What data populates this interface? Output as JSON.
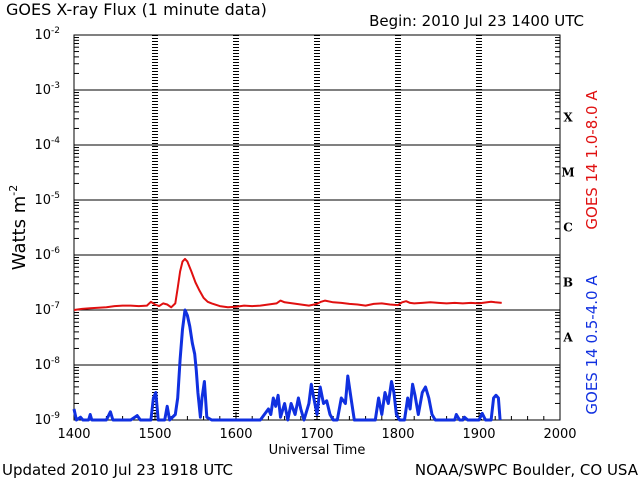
{
  "header": {
    "title": "GOES X-ray Flux (1 minute data)",
    "begin": "Begin: 2010 Jul 23 1400 UTC"
  },
  "footer": {
    "updated": "Updated 2010 Jul 23 1918 UTC",
    "credit": "NOAA/SWPC Boulder, CO USA"
  },
  "chart_data": {
    "type": "line",
    "title": "GOES X-ray Flux (1 minute data)",
    "xlabel": "Universal Time",
    "ylabel": "Watts m",
    "ylabel_superscript": "-2",
    "y_scale": "log",
    "xlim": [
      1400,
      2000
    ],
    "ylim": [
      1e-09,
      0.01
    ],
    "x_ticks": [
      {
        "value": 1400,
        "label": "1400"
      },
      {
        "value": 1500,
        "label": "1500"
      },
      {
        "value": 1600,
        "label": "1600"
      },
      {
        "value": 1700,
        "label": "1700"
      },
      {
        "value": 1800,
        "label": "1800"
      },
      {
        "value": 1900,
        "label": "1900"
      },
      {
        "value": 2000,
        "label": "2000"
      }
    ],
    "y_ticks": [
      {
        "exp": -9,
        "label": "10",
        "sup": "-9"
      },
      {
        "exp": -8,
        "label": "10",
        "sup": "-8"
      },
      {
        "exp": -7,
        "label": "10",
        "sup": "-7"
      },
      {
        "exp": -6,
        "label": "10",
        "sup": "-6"
      },
      {
        "exp": -5,
        "label": "10",
        "sup": "-5"
      },
      {
        "exp": -4,
        "label": "10",
        "sup": "-4"
      },
      {
        "exp": -3,
        "label": "10",
        "sup": "-3"
      },
      {
        "exp": -2,
        "label": "10",
        "sup": "-2"
      }
    ],
    "flare_classes": [
      {
        "label": "A",
        "exp": -7.5
      },
      {
        "label": "B",
        "exp": -6.5
      },
      {
        "label": "C",
        "exp": -5.5
      },
      {
        "label": "M",
        "exp": -4.5
      },
      {
        "label": "X",
        "exp": -3.5
      }
    ],
    "grid": true,
    "series": [
      {
        "name": "GOES 14 1.0-8.0 A",
        "color": "#e01010",
        "points": [
          [
            1400,
            -7.0
          ],
          [
            1410,
            -6.98
          ],
          [
            1420,
            -6.97
          ],
          [
            1430,
            -6.96
          ],
          [
            1440,
            -6.95
          ],
          [
            1450,
            -6.93
          ],
          [
            1460,
            -6.92
          ],
          [
            1470,
            -6.92
          ],
          [
            1480,
            -6.93
          ],
          [
            1490,
            -6.92
          ],
          [
            1495,
            -6.85
          ],
          [
            1500,
            -6.9
          ],
          [
            1505,
            -6.93
          ],
          [
            1510,
            -6.88
          ],
          [
            1515,
            -6.9
          ],
          [
            1520,
            -6.95
          ],
          [
            1525,
            -6.88
          ],
          [
            1528,
            -6.6
          ],
          [
            1531,
            -6.3
          ],
          [
            1534,
            -6.12
          ],
          [
            1537,
            -6.07
          ],
          [
            1540,
            -6.12
          ],
          [
            1545,
            -6.3
          ],
          [
            1550,
            -6.5
          ],
          [
            1555,
            -6.65
          ],
          [
            1560,
            -6.78
          ],
          [
            1565,
            -6.85
          ],
          [
            1570,
            -6.88
          ],
          [
            1580,
            -6.93
          ],
          [
            1590,
            -6.95
          ],
          [
            1600,
            -6.94
          ],
          [
            1610,
            -6.92
          ],
          [
            1620,
            -6.93
          ],
          [
            1630,
            -6.92
          ],
          [
            1640,
            -6.9
          ],
          [
            1650,
            -6.88
          ],
          [
            1655,
            -6.83
          ],
          [
            1660,
            -6.86
          ],
          [
            1670,
            -6.88
          ],
          [
            1680,
            -6.9
          ],
          [
            1690,
            -6.92
          ],
          [
            1700,
            -6.89
          ],
          [
            1705,
            -6.85
          ],
          [
            1710,
            -6.83
          ],
          [
            1720,
            -6.86
          ],
          [
            1730,
            -6.87
          ],
          [
            1740,
            -6.89
          ],
          [
            1750,
            -6.9
          ],
          [
            1760,
            -6.92
          ],
          [
            1770,
            -6.89
          ],
          [
            1780,
            -6.88
          ],
          [
            1790,
            -6.9
          ],
          [
            1800,
            -6.91
          ],
          [
            1805,
            -6.86
          ],
          [
            1810,
            -6.84
          ],
          [
            1815,
            -6.87
          ],
          [
            1820,
            -6.88
          ],
          [
            1830,
            -6.87
          ],
          [
            1840,
            -6.86
          ],
          [
            1850,
            -6.87
          ],
          [
            1860,
            -6.88
          ],
          [
            1870,
            -6.87
          ],
          [
            1880,
            -6.88
          ],
          [
            1890,
            -6.87
          ],
          [
            1900,
            -6.88
          ],
          [
            1910,
            -6.86
          ],
          [
            1915,
            -6.85
          ],
          [
            1920,
            -6.86
          ],
          [
            1928,
            -6.87
          ]
        ]
      },
      {
        "name": "GOES 14 0.5-4.0 A",
        "color": "#1030e0",
        "points": [
          [
            1400,
            -8.8
          ],
          [
            1403,
            -9.0
          ],
          [
            1408,
            -8.95
          ],
          [
            1411,
            -9.0
          ],
          [
            1418,
            -9.0
          ],
          [
            1420,
            -8.9
          ],
          [
            1422,
            -9.0
          ],
          [
            1440,
            -9.0
          ],
          [
            1445,
            -8.85
          ],
          [
            1448,
            -9.0
          ],
          [
            1460,
            -9.0
          ],
          [
            1470,
            -9.0
          ],
          [
            1478,
            -8.92
          ],
          [
            1482,
            -9.0
          ],
          [
            1495,
            -9.0
          ],
          [
            1498,
            -8.6
          ],
          [
            1501,
            -8.5
          ],
          [
            1504,
            -9.0
          ],
          [
            1512,
            -9.0
          ],
          [
            1515,
            -8.75
          ],
          [
            1518,
            -9.0
          ],
          [
            1525,
            -8.9
          ],
          [
            1528,
            -8.6
          ],
          [
            1531,
            -7.9
          ],
          [
            1534,
            -7.35
          ],
          [
            1537,
            -7.0
          ],
          [
            1540,
            -7.1
          ],
          [
            1543,
            -7.3
          ],
          [
            1546,
            -7.6
          ],
          [
            1549,
            -7.8
          ],
          [
            1551,
            -8.1
          ],
          [
            1553,
            -8.5
          ],
          [
            1556,
            -8.95
          ],
          [
            1558,
            -8.6
          ],
          [
            1561,
            -8.3
          ],
          [
            1564,
            -8.95
          ],
          [
            1570,
            -9.0
          ],
          [
            1600,
            -9.0
          ],
          [
            1630,
            -9.0
          ],
          [
            1640,
            -8.8
          ],
          [
            1643,
            -8.9
          ],
          [
            1646,
            -8.6
          ],
          [
            1649,
            -8.75
          ],
          [
            1652,
            -8.55
          ],
          [
            1655,
            -8.95
          ],
          [
            1660,
            -8.7
          ],
          [
            1664,
            -9.0
          ],
          [
            1668,
            -8.7
          ],
          [
            1673,
            -8.9
          ],
          [
            1677,
            -8.6
          ],
          [
            1680,
            -8.8
          ],
          [
            1684,
            -9.0
          ],
          [
            1690,
            -8.7
          ],
          [
            1693,
            -8.35
          ],
          [
            1696,
            -8.6
          ],
          [
            1700,
            -8.9
          ],
          [
            1704,
            -8.4
          ],
          [
            1708,
            -8.7
          ],
          [
            1712,
            -8.65
          ],
          [
            1716,
            -8.9
          ],
          [
            1720,
            -9.0
          ],
          [
            1725,
            -9.0
          ],
          [
            1730,
            -8.6
          ],
          [
            1735,
            -8.7
          ],
          [
            1738,
            -8.2
          ],
          [
            1742,
            -8.6
          ],
          [
            1746,
            -9.0
          ],
          [
            1760,
            -9.0
          ],
          [
            1772,
            -9.0
          ],
          [
            1776,
            -8.6
          ],
          [
            1780,
            -8.9
          ],
          [
            1784,
            -8.5
          ],
          [
            1788,
            -8.7
          ],
          [
            1792,
            -8.3
          ],
          [
            1795,
            -8.5
          ],
          [
            1798,
            -8.9
          ],
          [
            1802,
            -9.0
          ],
          [
            1808,
            -9.0
          ],
          [
            1812,
            -8.6
          ],
          [
            1815,
            -8.8
          ],
          [
            1818,
            -8.35
          ],
          [
            1821,
            -8.55
          ],
          [
            1825,
            -8.9
          ],
          [
            1830,
            -8.5
          ],
          [
            1834,
            -8.4
          ],
          [
            1838,
            -8.6
          ],
          [
            1842,
            -8.9
          ],
          [
            1846,
            -9.0
          ],
          [
            1860,
            -9.0
          ],
          [
            1870,
            -9.0
          ],
          [
            1872,
            -8.9
          ],
          [
            1876,
            -9.0
          ],
          [
            1880,
            -9.0
          ],
          [
            1882,
            -8.95
          ],
          [
            1886,
            -9.0
          ],
          [
            1900,
            -9.0
          ],
          [
            1904,
            -8.88
          ],
          [
            1908,
            -9.0
          ],
          [
            1915,
            -9.0
          ],
          [
            1918,
            -8.6
          ],
          [
            1921,
            -8.55
          ],
          [
            1924,
            -8.6
          ],
          [
            1926,
            -9.0
          ]
        ]
      }
    ]
  }
}
